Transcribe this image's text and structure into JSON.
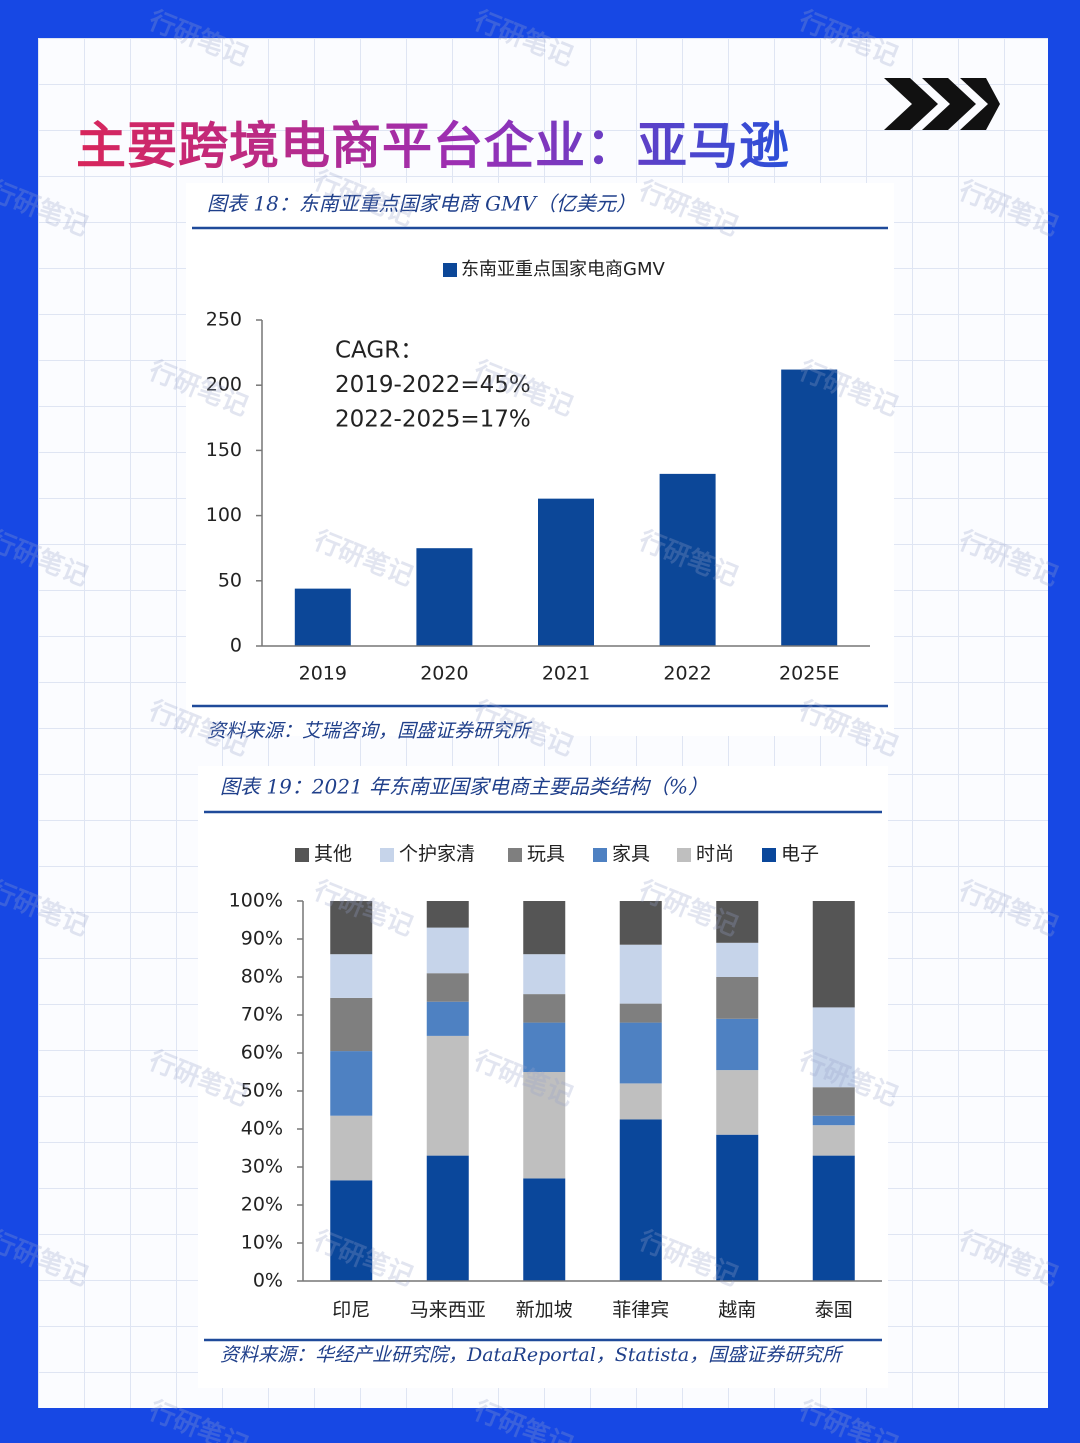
{
  "title": "主要跨境电商平台企业：亚马逊",
  "watermark": "行研笔记",
  "chart_data": [
    {
      "type": "bar",
      "caption": "图表 18：东南亚重点国家电商 GMV（亿美元）",
      "legend_label": "东南亚重点国家电商GMV",
      "annotations": [
        "CAGR：",
        "2019-2022=45%",
        "2022-2025=17%"
      ],
      "categories": [
        "2019",
        "2020",
        "2021",
        "2022",
        "2025E"
      ],
      "values": [
        44,
        75,
        113,
        132,
        212
      ],
      "color": "#0c4798",
      "ylim": [
        0,
        250
      ],
      "yticks": [
        0,
        50,
        100,
        150,
        200,
        250
      ],
      "source": "资料来源：艾瑞咨询，国盛证券研究所"
    },
    {
      "type": "stacked_bar",
      "caption": "图表 19：2021 年东南亚国家电商主要品类结构（%）",
      "categories": [
        "印尼",
        "马来西亚",
        "新加坡",
        "菲律宾",
        "越南",
        "泰国"
      ],
      "series": [
        {
          "name": "其他",
          "color": "#555555",
          "values": [
            14,
            7,
            14,
            11.5,
            11,
            28
          ]
        },
        {
          "name": "个护家清",
          "color": "#c6d4ea",
          "values": [
            11.5,
            12,
            10.5,
            15.5,
            9,
            21
          ]
        },
        {
          "name": "玩具",
          "color": "#7f7f7f",
          "values": [
            14,
            7.5,
            7.5,
            5,
            11,
            7.5
          ]
        },
        {
          "name": "家具",
          "color": "#4e81c2",
          "values": [
            17,
            9,
            13,
            16,
            13.5,
            2.5
          ]
        },
        {
          "name": "时尚",
          "color": "#bfbfbf",
          "values": [
            17,
            31.5,
            28,
            9.5,
            17,
            8
          ]
        },
        {
          "name": "电子",
          "color": "#0a479b",
          "values": [
            26.5,
            33,
            27,
            42.5,
            38.5,
            33
          ]
        }
      ],
      "ylim": [
        0,
        100
      ],
      "yticks": [
        {
          "value": 0,
          "label": "0%"
        },
        {
          "value": 10,
          "label": "10%"
        },
        {
          "value": 20,
          "label": "20%"
        },
        {
          "value": 30,
          "label": "30%"
        },
        {
          "value": 40,
          "label": "40%"
        },
        {
          "value": 50,
          "label": "50%"
        },
        {
          "value": 60,
          "label": "60%"
        },
        {
          "value": 70,
          "label": "70%"
        },
        {
          "value": 80,
          "label": "80%"
        },
        {
          "value": 90,
          "label": "90%"
        },
        {
          "value": 100,
          "label": "100%"
        }
      ],
      "source": "资料来源：华经产业研究院，DataReportal，Statista，国盛证券研究所"
    }
  ]
}
